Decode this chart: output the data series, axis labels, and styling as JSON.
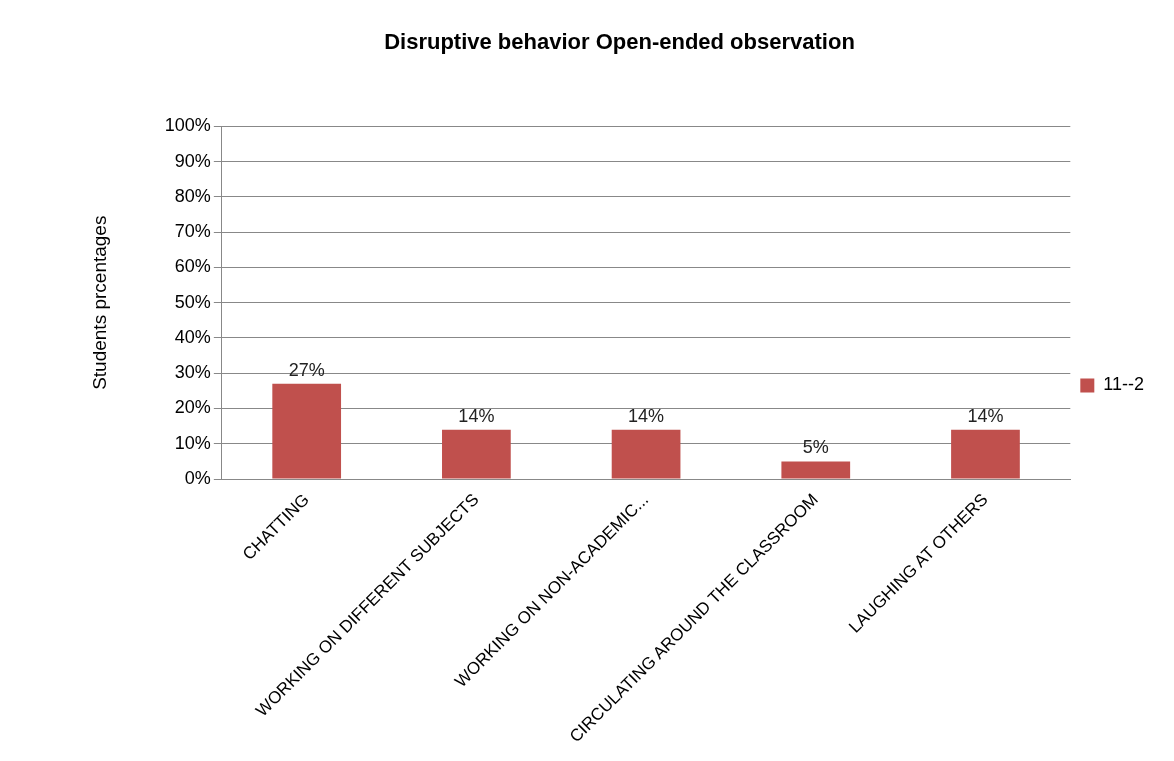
{
  "chart_data": {
    "type": "bar",
    "title": "Disruptive behavior Open-ended observation",
    "ylabel": "Students prcentages",
    "categories": [
      "CHATTING",
      "WORKING ON DIFFERENT SUBJECTS",
      "WORKING ON NON-ACADEMIC...",
      "CIRCULATING AROUND THE CLASSROOM",
      "LAUGHING AT OTHERS"
    ],
    "series": [
      {
        "name": "11--2",
        "color": "#c0504d",
        "values": [
          27,
          14,
          14,
          5,
          14
        ],
        "value_labels": [
          "27%",
          "14%",
          "14%",
          "5%",
          "14%"
        ]
      }
    ],
    "ylim": [
      0,
      100
    ],
    "yticks": [
      {
        "value": 0,
        "label": "0%"
      },
      {
        "value": 10,
        "label": "10%"
      },
      {
        "value": 20,
        "label": "20%"
      },
      {
        "value": 30,
        "label": "30%"
      },
      {
        "value": 40,
        "label": "40%"
      },
      {
        "value": 50,
        "label": "50%"
      },
      {
        "value": 60,
        "label": "60%"
      },
      {
        "value": 70,
        "label": "70%"
      },
      {
        "value": 80,
        "label": "80%"
      },
      {
        "value": 90,
        "label": "90%"
      },
      {
        "value": 100,
        "label": "100%"
      }
    ],
    "grid": "y",
    "legend": "right"
  }
}
